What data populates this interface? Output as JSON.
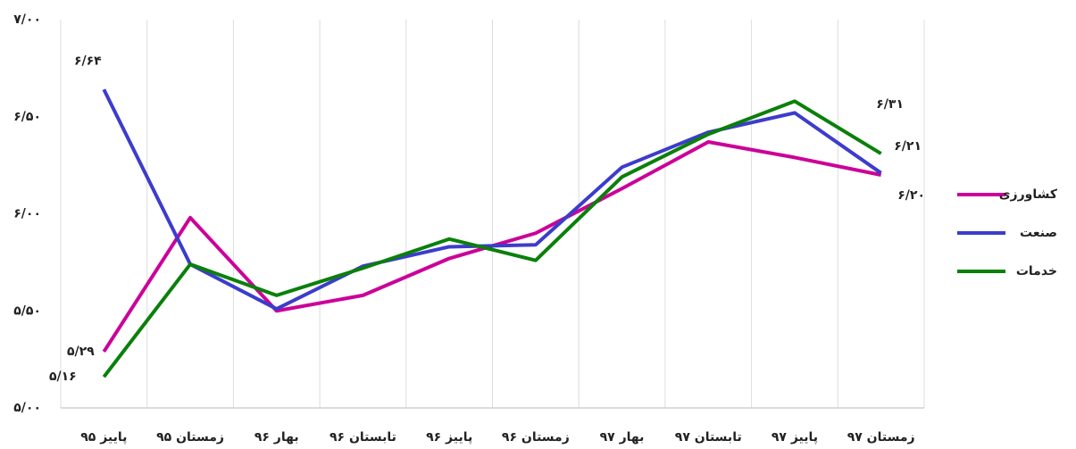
{
  "chart_data": {
    "type": "line",
    "categories": [
      "پاییز ۹۵",
      "زمستان ۹۵",
      "بهار ۹۶",
      "تابستان ۹۶",
      "پاییز ۹۶",
      "زمستان ۹۶",
      "بهار ۹۷",
      "تابستان ۹۷",
      "پاییز ۹۷",
      "زمستان ۹۷"
    ],
    "series": [
      {
        "name": "کشاورزی",
        "color": "#cc0099",
        "values": [
          5.29,
          5.98,
          5.5,
          5.58,
          5.77,
          5.9,
          6.13,
          6.37,
          6.29,
          6.2
        ],
        "value_labels": [
          "۵/۲۹",
          null,
          null,
          null,
          null,
          null,
          null,
          null,
          null,
          "۶/۲۰"
        ]
      },
      {
        "name": "صنعت",
        "color": "#3c3ccc",
        "values": [
          6.64,
          5.74,
          5.51,
          5.73,
          5.83,
          5.84,
          6.24,
          6.42,
          6.52,
          6.21
        ],
        "value_labels": [
          "۶/۶۴",
          null,
          null,
          null,
          null,
          null,
          null,
          null,
          null,
          "۶/۲۱"
        ]
      },
      {
        "name": "خدمات",
        "color": "#0a800a",
        "values": [
          5.16,
          5.74,
          5.58,
          5.72,
          5.87,
          5.76,
          6.19,
          6.41,
          6.58,
          6.31
        ],
        "value_labels": [
          "۵/۱۶",
          null,
          null,
          null,
          null,
          null,
          null,
          null,
          null,
          "۶/۳۱"
        ]
      }
    ],
    "ylim": [
      5,
      7
    ],
    "yticks": [
      {
        "value": 5,
        "label": "۵/۰۰"
      },
      {
        "value": 5.5,
        "label": "۵/۵۰"
      },
      {
        "value": 6,
        "label": "۶/۰۰"
      },
      {
        "value": 6.5,
        "label": "۶/۵۰"
      },
      {
        "value": 7,
        "label": "۷/۰۰"
      }
    ],
    "legend": "right"
  }
}
